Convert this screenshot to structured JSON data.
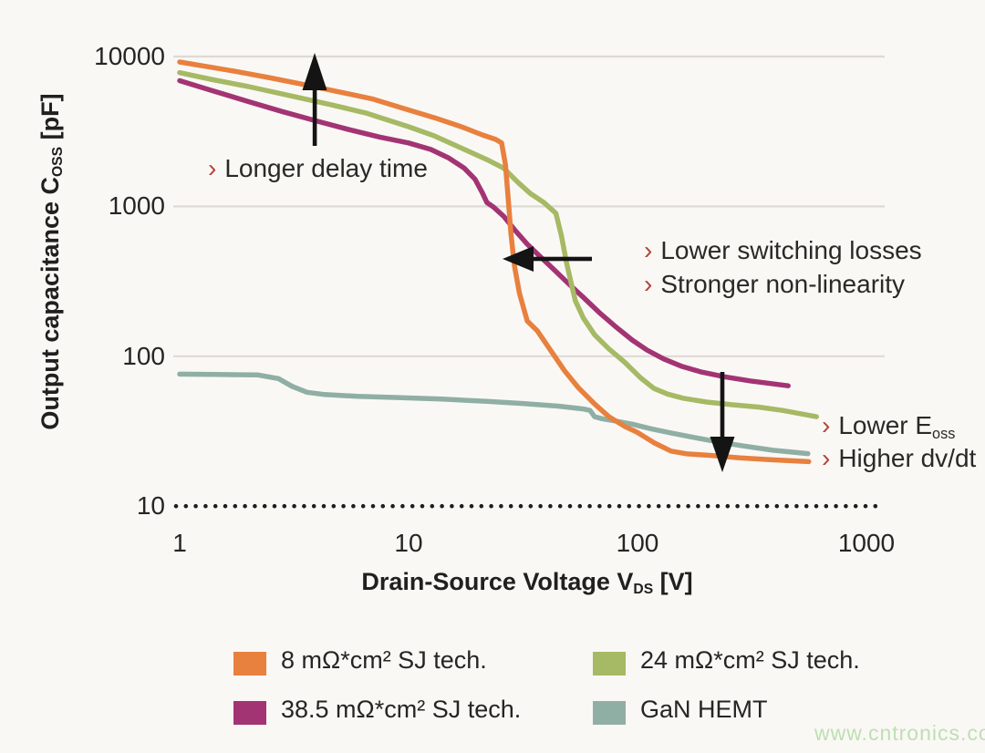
{
  "watermark": "www.cntronics.com",
  "axes": {
    "y_title": {
      "prefix": "Output capacitance C",
      "sub": "OSS",
      "suffix": " [pF]"
    },
    "x_title": {
      "prefix": "Drain-Source Voltage V",
      "sub": "DS",
      "suffix": " [V]"
    }
  },
  "annotations": {
    "longer_delay": {
      "marker": "›",
      "text": "Longer delay time"
    },
    "lower_switching": {
      "marker": "›",
      "text": "Lower switching losses"
    },
    "stronger_nonlin": {
      "marker": "›",
      "text": "Stronger non-linearity"
    },
    "lower_eoss": {
      "marker": "›",
      "prefix": "Lower E",
      "sub": "oss"
    },
    "higher_dvdt": {
      "marker": "›",
      "text": "Higher dv/dt"
    }
  },
  "legend": {
    "items": [
      {
        "label": "8 mΩ*cm² SJ tech.",
        "color": "#e8803e"
      },
      {
        "label": "38.5 mΩ*cm² SJ tech.",
        "color": "#a33474"
      },
      {
        "label": "24 mΩ*cm² SJ tech.",
        "color": "#a6b964"
      },
      {
        "label": "GaN HEMT",
        "color": "#90afa4"
      }
    ]
  },
  "chart_data": {
    "type": "line",
    "x_scale": "log",
    "y_scale": "log",
    "xlabel": "Drain-Source Voltage VDS [V]",
    "ylabel": "Output capacitance COSS [pF]",
    "x_range": [
      1,
      1000
    ],
    "y_range": [
      10,
      10000
    ],
    "x_ticks": [
      1,
      10,
      100,
      1000
    ],
    "y_ticks": [
      10000,
      1000,
      100,
      10
    ],
    "y_gridlines_solid": [
      10000,
      1000,
      100
    ],
    "y_baseline_dotted": 10,
    "grid_color": "#dedad4",
    "dotted_color": "#1e1e1e",
    "legend_position": "bottom",
    "series": [
      {
        "name": "GaN HEMT",
        "color": "#90afa4",
        "points": [
          [
            1,
            76
          ],
          [
            1.6,
            75.5
          ],
          [
            2.2,
            75
          ],
          [
            2.7,
            71
          ],
          [
            3.1,
            63
          ],
          [
            3.6,
            57.5
          ],
          [
            4.3,
            55.5
          ],
          [
            6,
            54
          ],
          [
            9,
            53
          ],
          [
            14,
            51.8
          ],
          [
            22,
            50
          ],
          [
            32,
            48.3
          ],
          [
            45,
            46.5
          ],
          [
            58,
            44.5
          ],
          [
            62,
            43.5
          ],
          [
            65,
            39.5
          ],
          [
            70,
            38.3
          ],
          [
            80,
            37
          ],
          [
            95,
            35.2
          ],
          [
            115,
            32.8
          ],
          [
            140,
            30.8
          ],
          [
            175,
            28.8
          ],
          [
            220,
            27
          ],
          [
            290,
            25.2
          ],
          [
            390,
            23.6
          ],
          [
            555,
            22.4
          ]
        ]
      },
      {
        "name": "38.5 mΩ*cm² SJ tech.",
        "color": "#a33474",
        "points": [
          [
            1,
            6900
          ],
          [
            1.4,
            5900
          ],
          [
            2,
            5000
          ],
          [
            2.8,
            4300
          ],
          [
            4,
            3700
          ],
          [
            5.5,
            3250
          ],
          [
            7.5,
            2900
          ],
          [
            10,
            2650
          ],
          [
            12.5,
            2400
          ],
          [
            15,
            2100
          ],
          [
            17.5,
            1800
          ],
          [
            19.5,
            1520
          ],
          [
            21,
            1230
          ],
          [
            22,
            1060
          ],
          [
            23.5,
            990
          ],
          [
            26,
            860
          ],
          [
            29,
            700
          ],
          [
            33,
            560
          ],
          [
            38,
            455
          ],
          [
            44,
            368
          ],
          [
            50,
            305
          ],
          [
            58,
            247
          ],
          [
            68,
            196
          ],
          [
            80,
            158
          ],
          [
            95,
            128
          ],
          [
            110,
            110
          ],
          [
            130,
            96
          ],
          [
            155,
            86
          ],
          [
            190,
            78.5
          ],
          [
            240,
            73
          ],
          [
            310,
            68.5
          ],
          [
            455,
            63.5
          ]
        ]
      },
      {
        "name": "24 mΩ*cm² SJ tech.",
        "color": "#a6b964",
        "points": [
          [
            1,
            7800
          ],
          [
            1.4,
            7000
          ],
          [
            2,
            6300
          ],
          [
            3,
            5500
          ],
          [
            4.5,
            4800
          ],
          [
            6.5,
            4200
          ],
          [
            10,
            3400
          ],
          [
            13,
            2950
          ],
          [
            17,
            2450
          ],
          [
            22,
            2050
          ],
          [
            26,
            1800
          ],
          [
            30,
            1450
          ],
          [
            34,
            1220
          ],
          [
            39,
            1060
          ],
          [
            44,
            900
          ],
          [
            46.5,
            640
          ],
          [
            49,
            420
          ],
          [
            51.5,
            300
          ],
          [
            53.5,
            235
          ],
          [
            58,
            180
          ],
          [
            65,
            139
          ],
          [
            75,
            112
          ],
          [
            88,
            91
          ],
          [
            103,
            72
          ],
          [
            118,
            61
          ],
          [
            135,
            56
          ],
          [
            158,
            52.5
          ],
          [
            200,
            49.5
          ],
          [
            260,
            47.5
          ],
          [
            340,
            45.8
          ],
          [
            430,
            43.5
          ],
          [
            605,
            39.5
          ]
        ]
      },
      {
        "name": "8 mΩ*cm² SJ tech.",
        "color": "#e8803e",
        "points": [
          [
            1,
            9200
          ],
          [
            1.3,
            8600
          ],
          [
            1.8,
            7900
          ],
          [
            2.5,
            7200
          ],
          [
            3.5,
            6500
          ],
          [
            5,
            5800
          ],
          [
            7,
            5200
          ],
          [
            10,
            4400
          ],
          [
            13,
            3900
          ],
          [
            17,
            3400
          ],
          [
            21,
            3000
          ],
          [
            24,
            2800
          ],
          [
            25.5,
            2650
          ],
          [
            26.5,
            1900
          ],
          [
            27.2,
            1150
          ],
          [
            28,
            660
          ],
          [
            29,
            400
          ],
          [
            30.5,
            262
          ],
          [
            33,
            172
          ],
          [
            36.5,
            148
          ],
          [
            42,
            108
          ],
          [
            48,
            80
          ],
          [
            55,
            62
          ],
          [
            65,
            48
          ],
          [
            75,
            39.5
          ],
          [
            88,
            34
          ],
          [
            100,
            31
          ],
          [
            118,
            26.5
          ],
          [
            140,
            23.3
          ],
          [
            165,
            22.3
          ],
          [
            210,
            21.8
          ],
          [
            280,
            21
          ],
          [
            380,
            20.4
          ],
          [
            560,
            19.8
          ]
        ]
      }
    ]
  }
}
